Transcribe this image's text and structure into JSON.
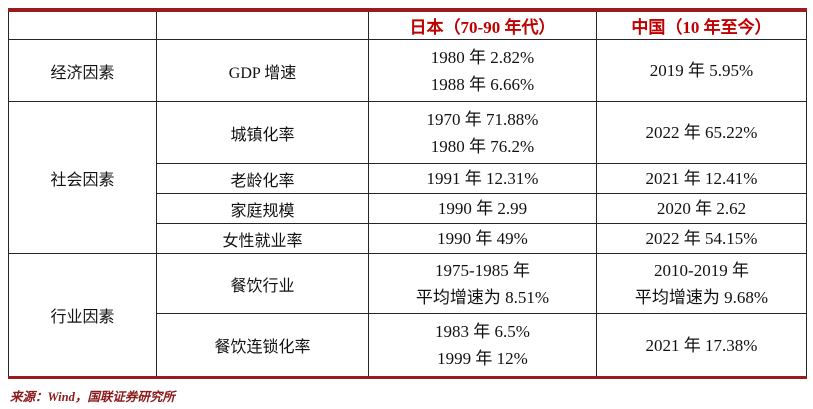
{
  "table": {
    "header": {
      "category": "",
      "metric": "",
      "japan": "日本（70-90 年代）",
      "china": "中国（10 年至今）"
    },
    "groups": [
      {
        "category": "经济因素",
        "rows": [
          {
            "metric": "GDP 增速",
            "japan": [
              "1980 年 2.82%",
              "1988 年 6.66%"
            ],
            "china": [
              "2019 年 5.95%"
            ]
          }
        ]
      },
      {
        "category": "社会因素",
        "rows": [
          {
            "metric": "城镇化率",
            "japan": [
              "1970 年 71.88%",
              "1980 年 76.2%"
            ],
            "china": [
              "2022 年 65.22%"
            ]
          },
          {
            "metric": "老龄化率",
            "japan": [
              "1991 年 12.31%"
            ],
            "china": [
              "2021 年 12.41%"
            ]
          },
          {
            "metric": "家庭规模",
            "japan": [
              "1990 年 2.99"
            ],
            "china": [
              "2020 年 2.62"
            ]
          },
          {
            "metric": "女性就业率",
            "japan": [
              "1990 年 49%"
            ],
            "china": [
              "2022 年 54.15%"
            ]
          }
        ]
      },
      {
        "category": "行业因素",
        "rows": [
          {
            "metric": "餐饮行业",
            "japan": [
              "1975-1985 年",
              "平均增速为 8.51%"
            ],
            "china": [
              "2010-2019 年",
              "平均增速为 9.68%"
            ]
          },
          {
            "metric": "餐饮连锁化率",
            "japan": [
              "1983 年 6.5%",
              "1999 年 12%"
            ],
            "china": [
              "2021 年 17.38%"
            ]
          }
        ]
      }
    ]
  },
  "footer": {
    "source": "来源：Wind，国联证券研究所"
  },
  "colors": {
    "header_text": "#c00000",
    "accent_border": "#991b1e",
    "grid_line": "#262626",
    "source_text": "#8b1a1a"
  }
}
